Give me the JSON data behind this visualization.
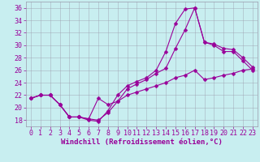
{
  "xlabel": "Windchill (Refroidissement éolien,°C)",
  "bg_color": "#c8eef0",
  "grid_color": "#9999aa",
  "line_color": "#990099",
  "xlim": [
    -0.5,
    23.5
  ],
  "ylim": [
    17,
    37
  ],
  "xticks": [
    0,
    1,
    2,
    3,
    4,
    5,
    6,
    7,
    8,
    9,
    10,
    11,
    12,
    13,
    14,
    15,
    16,
    17,
    18,
    19,
    20,
    21,
    22,
    23
  ],
  "yticks": [
    18,
    20,
    22,
    24,
    26,
    28,
    30,
    32,
    34,
    36
  ],
  "line1_x": [
    0,
    1,
    2,
    3,
    4,
    5,
    6,
    7,
    8,
    9,
    10,
    11,
    12,
    13,
    14,
    15,
    16,
    17,
    18,
    19,
    20,
    21,
    22,
    23
  ],
  "line1_y": [
    21.5,
    22.0,
    22.0,
    20.5,
    18.5,
    18.5,
    18.0,
    17.8,
    19.5,
    22.0,
    23.5,
    24.2,
    24.8,
    26.0,
    29.0,
    33.5,
    35.8,
    36.0,
    30.5,
    30.0,
    29.0,
    29.0,
    27.5,
    26.0
  ],
  "line2_x": [
    0,
    1,
    2,
    3,
    4,
    5,
    6,
    7,
    8,
    9,
    10,
    11,
    12,
    13,
    14,
    15,
    16,
    17,
    18,
    19,
    20,
    21,
    22,
    23
  ],
  "line2_y": [
    21.5,
    22.0,
    22.0,
    20.5,
    18.5,
    18.5,
    18.2,
    18.0,
    19.2,
    21.0,
    23.0,
    23.8,
    24.5,
    25.5,
    26.3,
    29.5,
    32.5,
    36.0,
    30.5,
    30.2,
    29.5,
    29.3,
    28.0,
    26.5
  ],
  "line3_x": [
    0,
    1,
    2,
    3,
    4,
    5,
    6,
    7,
    8,
    9,
    10,
    11,
    12,
    13,
    14,
    15,
    16,
    17,
    18,
    19,
    20,
    21,
    22,
    23
  ],
  "line3_y": [
    21.5,
    22.0,
    22.0,
    20.5,
    18.5,
    18.5,
    18.2,
    21.5,
    20.5,
    21.0,
    22.0,
    22.5,
    23.0,
    23.5,
    24.0,
    24.8,
    25.2,
    26.0,
    24.5,
    24.8,
    25.2,
    25.5,
    26.0,
    26.2
  ],
  "tick_fontsize": 6,
  "xlabel_fontsize": 6.5,
  "marker_size": 2.5
}
